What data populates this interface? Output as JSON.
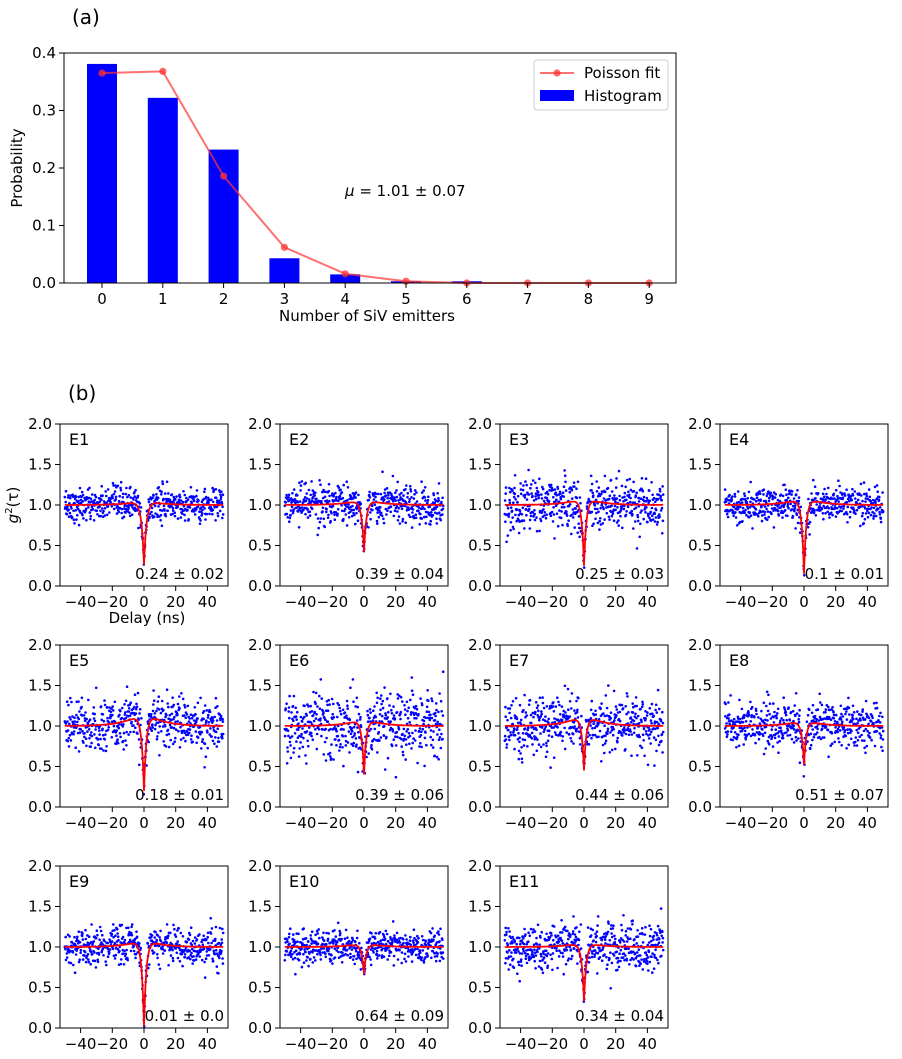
{
  "figure": {
    "panel_a_label": "(a)",
    "panel_b_label": "(b)"
  },
  "chart_data": [
    {
      "type": "bar",
      "panel": "(a)",
      "xlabel": "Number of SiV emitters",
      "ylabel": "Probability",
      "categories": [
        0,
        1,
        2,
        3,
        4,
        5,
        6,
        7,
        8,
        9
      ],
      "xticks": [
        "0",
        "1",
        "2",
        "3",
        "4",
        "5",
        "6",
        "7",
        "8",
        "9"
      ],
      "ylim": [
        0,
        0.4
      ],
      "yticks": [
        "0.0",
        "0.1",
        "0.2",
        "0.3",
        "0.4"
      ],
      "annotation": {
        "symbol": "μ",
        "text": " = 1.01 ± 0.07"
      },
      "legend_position": "top-right",
      "series": [
        {
          "name": "Histogram",
          "kind": "bar",
          "color": "#0000ff",
          "values": [
            0.381,
            0.322,
            0.232,
            0.043,
            0.015,
            0.003,
            0.003,
            0.0,
            0.0,
            0.0
          ]
        },
        {
          "name": "Poisson fit",
          "kind": "line-marker",
          "color": "#ff3333",
          "values": [
            0.365,
            0.368,
            0.186,
            0.062,
            0.016,
            0.003,
            0.0,
            0.0,
            0.0,
            0.0
          ]
        }
      ]
    },
    {
      "type": "scatter",
      "panel": "(b)",
      "ylabel": "g²(τ)",
      "ylabel_parts": {
        "main": "g",
        "sup": "2",
        "rest": "(τ)"
      },
      "xlabel": "Delay (ns)",
      "xlim": [
        -53,
        53
      ],
      "ylim": [
        0,
        2
      ],
      "xticks": [
        -40,
        -20,
        0,
        20,
        40
      ],
      "xtick_labels": [
        "−40",
        "−20",
        "0",
        "20",
        "40"
      ],
      "yticks": [
        "0.0",
        "0.5",
        "1.0",
        "1.5",
        "2.0"
      ],
      "point_color": "#0000ff",
      "fit_color": "#ff0000",
      "subplots": [
        {
          "label": "E1",
          "g2_0": "0.24 ± 0.02",
          "dip": 0.26,
          "noise": 0.1,
          "bunch": 0.06,
          "tau": 1.6
        },
        {
          "label": "E2",
          "g2_0": "0.39 ± 0.04",
          "dip": 0.42,
          "noise": 0.12,
          "bunch": 0.08,
          "tau": 1.6
        },
        {
          "label": "E3",
          "g2_0": "0.25 ± 0.03",
          "dip": 0.25,
          "noise": 0.16,
          "bunch": 0.1,
          "tau": 1.5
        },
        {
          "label": "E4",
          "g2_0": "0.1 ± 0.01",
          "dip": 0.15,
          "noise": 0.11,
          "bunch": 0.1,
          "tau": 1.5
        },
        {
          "label": "E5",
          "g2_0": "0.18 ± 0.01",
          "dip": 0.2,
          "noise": 0.16,
          "bunch": 0.2,
          "tau": 1.7
        },
        {
          "label": "E6",
          "g2_0": "0.39 ± 0.06",
          "dip": 0.4,
          "noise": 0.2,
          "bunch": 0.1,
          "tau": 1.5
        },
        {
          "label": "E7",
          "g2_0": "0.44 ± 0.06",
          "dip": 0.45,
          "noise": 0.17,
          "bunch": 0.16,
          "tau": 1.6
        },
        {
          "label": "E8",
          "g2_0": "0.51 ± 0.07",
          "dip": 0.52,
          "noise": 0.14,
          "bunch": 0.08,
          "tau": 1.5
        },
        {
          "label": "E9",
          "g2_0": "0.01 ± 0.0",
          "dip": 0.02,
          "noise": 0.11,
          "bunch": 0.1,
          "tau": 1.5
        },
        {
          "label": "E10",
          "g2_0": "0.64 ± 0.09",
          "dip": 0.66,
          "noise": 0.1,
          "bunch": 0.05,
          "tau": 1.5
        },
        {
          "label": "E11",
          "g2_0": "0.34 ± 0.04",
          "dip": 0.33,
          "noise": 0.14,
          "bunch": 0.06,
          "tau": 1.5
        }
      ]
    }
  ]
}
